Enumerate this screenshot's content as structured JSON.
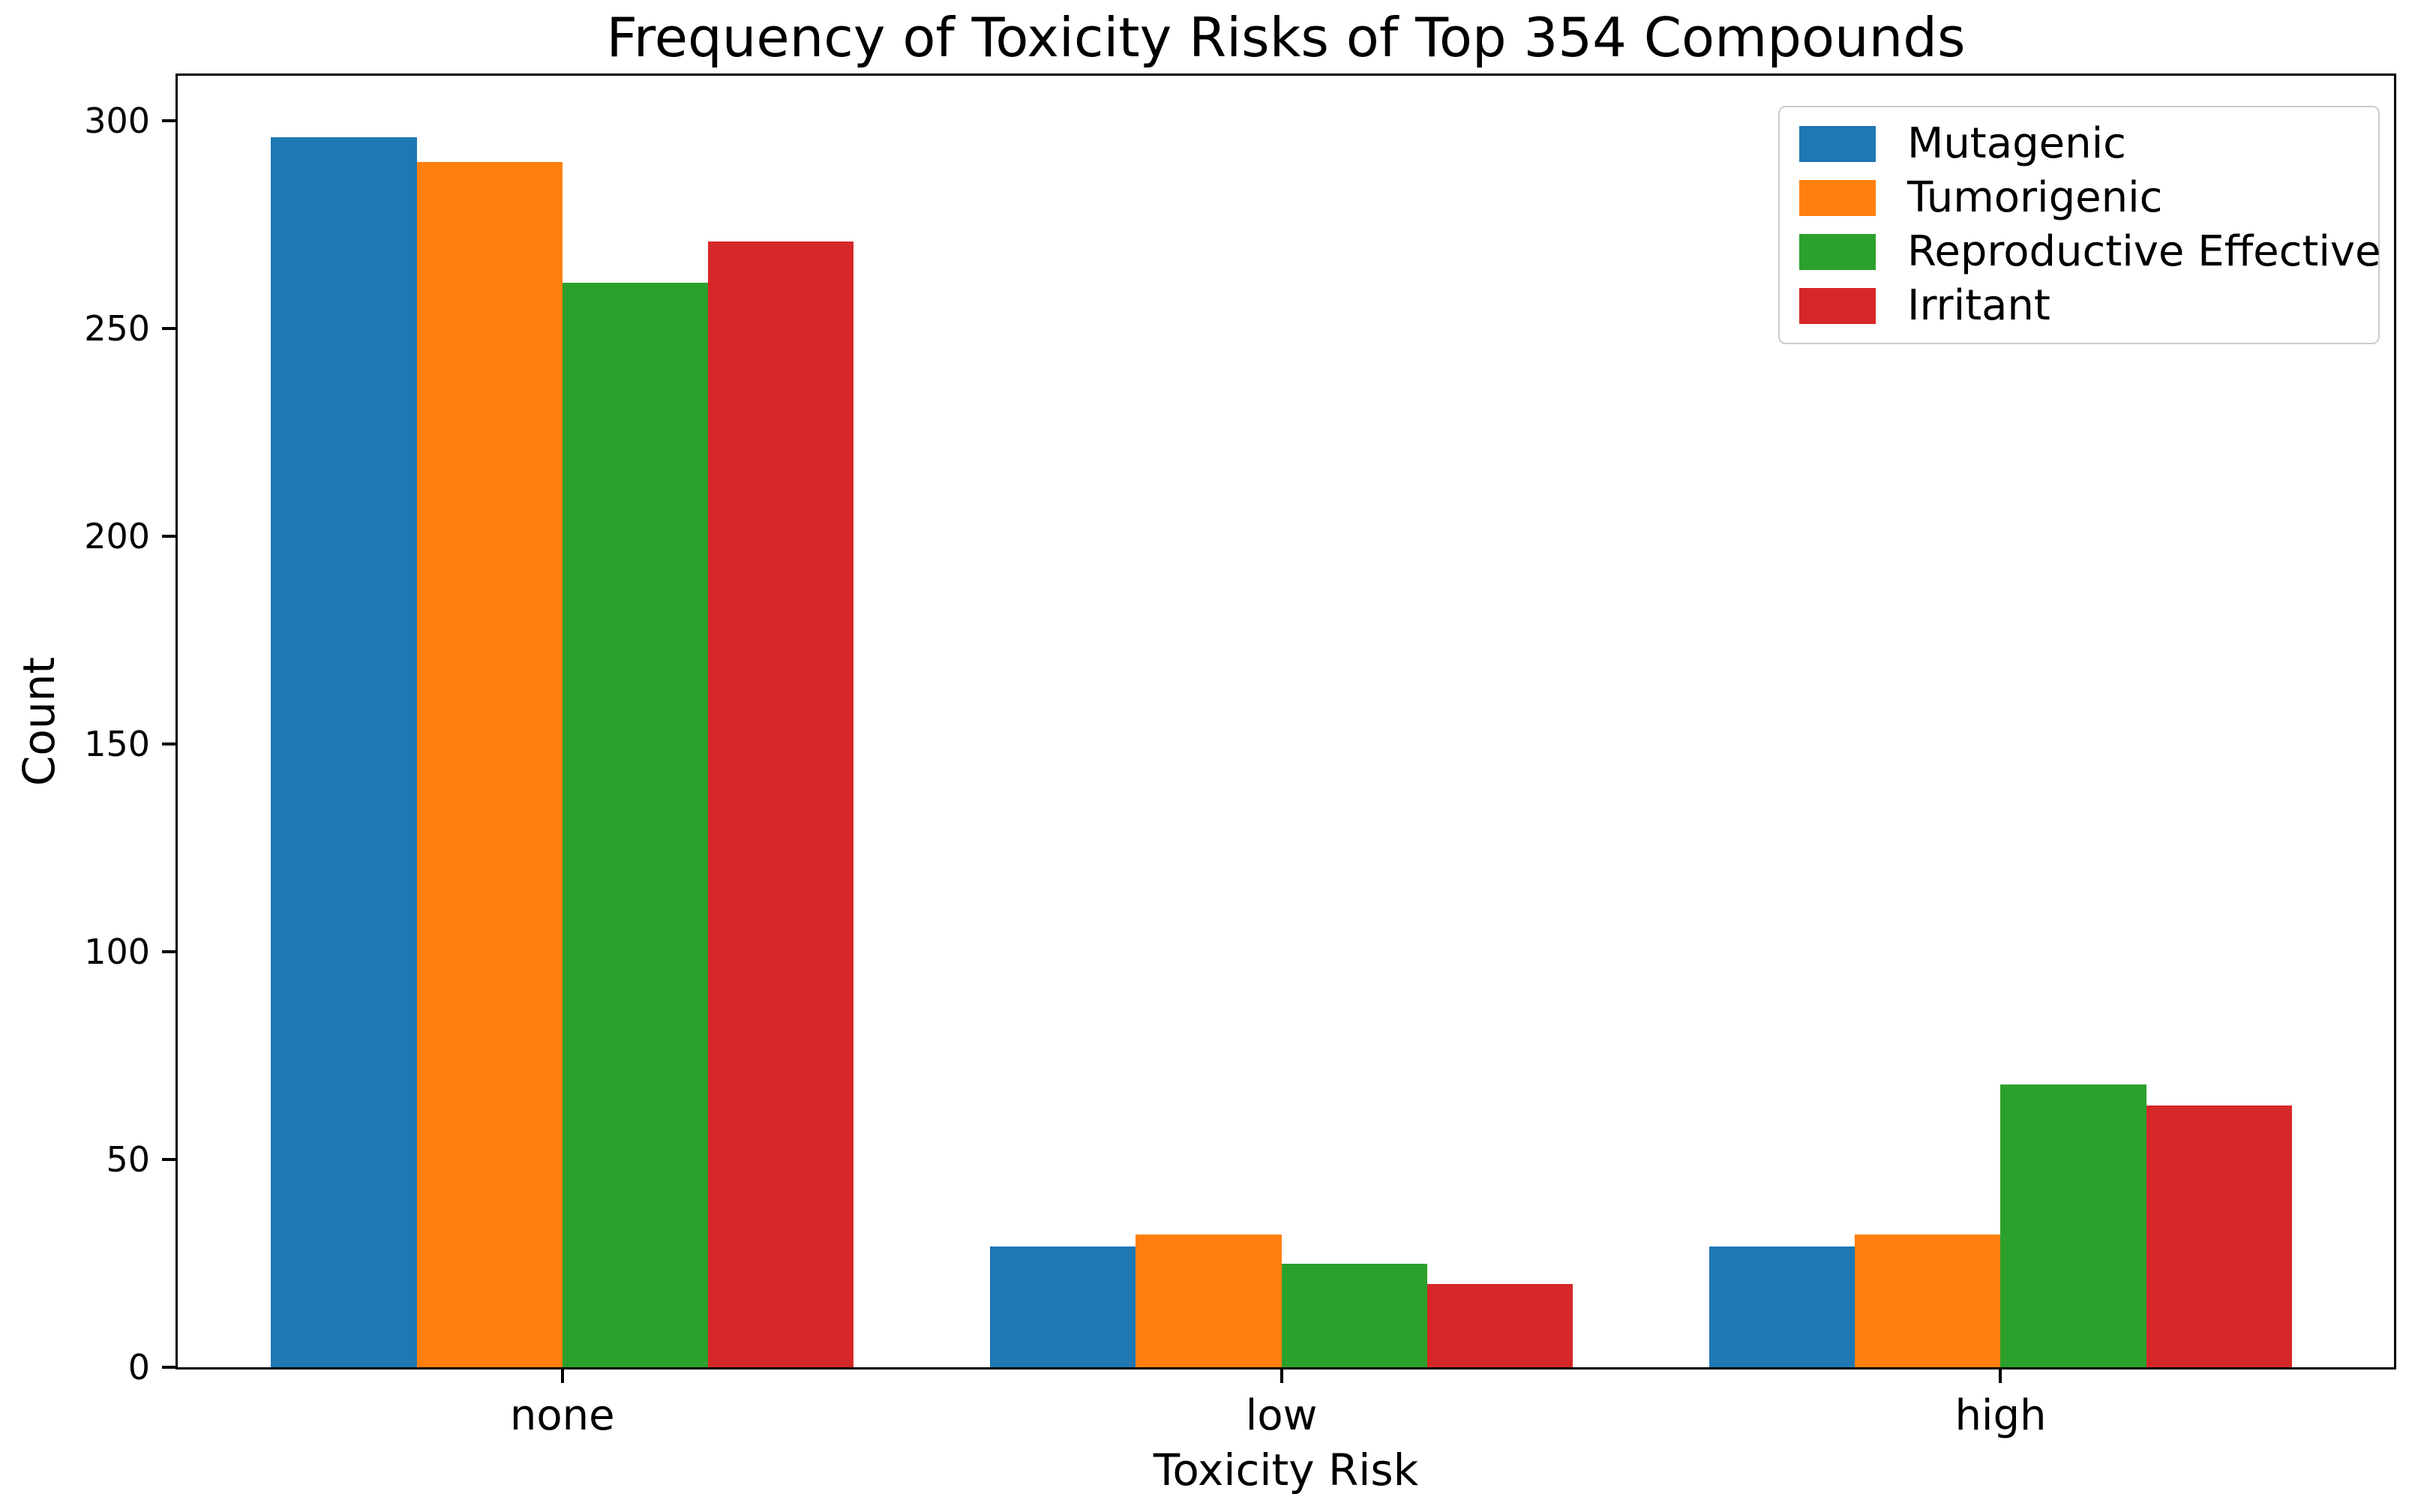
{
  "chart_data": {
    "type": "bar",
    "title": "Frequency of Toxicity Risks of Top 354 Compounds",
    "xlabel": "Toxicity Risk",
    "ylabel": "Count",
    "categories": [
      "none",
      "low",
      "high"
    ],
    "series": [
      {
        "name": "Mutagenic",
        "color": "#1f77b4",
        "values": [
          296,
          29,
          29
        ]
      },
      {
        "name": "Tumorigenic",
        "color": "#ff7f0e",
        "values": [
          290,
          32,
          32
        ]
      },
      {
        "name": "Reproductive Effective",
        "color": "#2ca02c",
        "values": [
          261,
          25,
          68
        ]
      },
      {
        "name": "Irritant",
        "color": "#d62728",
        "values": [
          271,
          20,
          63
        ]
      }
    ],
    "yticks": [
      0,
      50,
      100,
      150,
      200,
      250,
      300
    ],
    "ylim": [
      0,
      310.8
    ],
    "grid": false,
    "legend": {
      "position": "upper right",
      "labels": [
        "Mutagenic",
        "Tumorigenic",
        "Reproductive Effective",
        "Irritant"
      ]
    },
    "axis_color": "#000000",
    "legend_border_color": "#cccccc",
    "background_color": "#ffffff"
  }
}
